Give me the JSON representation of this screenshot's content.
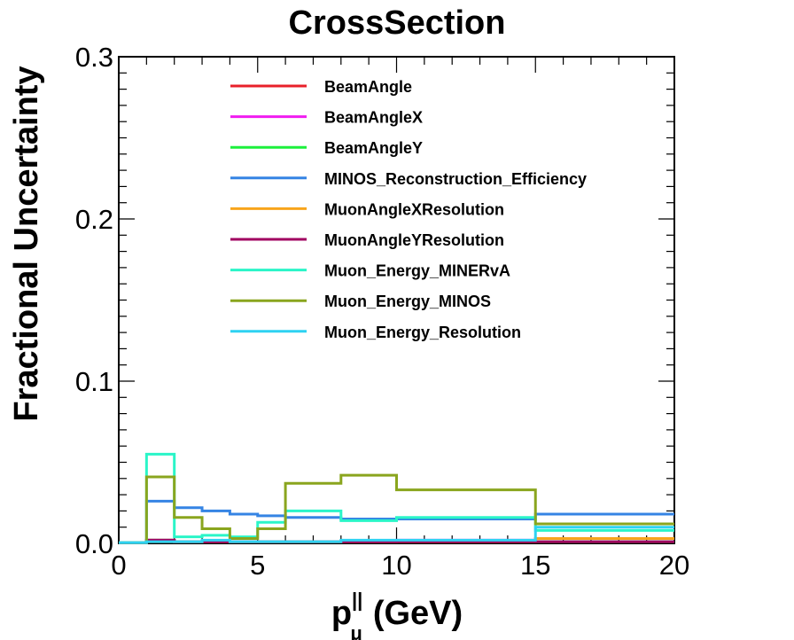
{
  "chart_data": {
    "type": "line",
    "title": "CrossSection",
    "xlabel_main": "p",
    "xlabel_sup": "||",
    "xlabel_sub": "μ",
    "xlabel_units": "(GeV)",
    "ylabel": "Fractional Uncertainty",
    "xlim": [
      0,
      20
    ],
    "ylim": [
      0,
      0.3
    ],
    "xticks": [
      {
        "v": 0,
        "label": "0"
      },
      {
        "v": 5,
        "label": "5"
      },
      {
        "v": 10,
        "label": "10"
      },
      {
        "v": 15,
        "label": "15"
      },
      {
        "v": 20,
        "label": "20"
      }
    ],
    "yticks": [
      {
        "v": 0,
        "label": "0.0"
      },
      {
        "v": 0.1,
        "label": "0.1"
      },
      {
        "v": 0.2,
        "label": "0.2"
      },
      {
        "v": 0.3,
        "label": "0.3"
      }
    ],
    "grid": false,
    "legend_position": "top-center",
    "bin_edges": [
      0,
      1,
      2,
      3,
      4,
      5,
      6,
      8,
      10,
      15,
      20
    ],
    "series": [
      {
        "name": "BeamAngle",
        "color": "#e8202a",
        "values": [
          0.0005,
          0.002,
          0.001,
          0.001,
          0.001,
          0.001,
          0.001,
          0.001,
          0.001,
          0.001
        ]
      },
      {
        "name": "BeamAngleX",
        "color": "#f01cf0",
        "values": [
          0.0005,
          0.002,
          0.001,
          0.001,
          0.001,
          0.001,
          0.001,
          0.001,
          0.002,
          0.003
        ]
      },
      {
        "name": "BeamAngleY",
        "color": "#1cf03c",
        "values": [
          0.0005,
          0.002,
          0.001,
          0.001,
          0.001,
          0.001,
          0.001,
          0.001,
          0.001,
          0.001
        ]
      },
      {
        "name": "MINOS_Reconstruction_Efficiency",
        "color": "#3584e4",
        "values": [
          0.0005,
          0.026,
          0.022,
          0.02,
          0.018,
          0.017,
          0.016,
          0.015,
          0.015,
          0.018
        ]
      },
      {
        "name": "MuonAngleXResolution",
        "color": "#f8a51c",
        "values": [
          0.0005,
          0.001,
          0.001,
          0.001,
          0.001,
          0.001,
          0.001,
          0.001,
          0.001,
          0.003
        ]
      },
      {
        "name": "MuonAngleYResolution",
        "color": "#a00060",
        "values": [
          0.0005,
          0.002,
          0.001,
          0.001,
          0.001,
          0.001,
          0.001,
          0.001,
          0.001,
          0.001
        ]
      },
      {
        "name": "Muon_Energy_MINERvA",
        "color": "#2af5c8",
        "values": [
          0.0005,
          0.055,
          0.004,
          0.005,
          0.004,
          0.013,
          0.02,
          0.014,
          0.016,
          0.008
        ]
      },
      {
        "name": "Muon_Energy_MINOS",
        "color": "#8aa51e",
        "values": [
          0.0005,
          0.041,
          0.016,
          0.009,
          0.003,
          0.009,
          0.037,
          0.042,
          0.033,
          0.012
        ]
      },
      {
        "name": "Muon_Energy_Resolution",
        "color": "#2ed2f2",
        "values": [
          0.0005,
          0.001,
          0.001,
          0.002,
          0.001,
          0.001,
          0.001,
          0.002,
          0.002,
          0.01
        ]
      }
    ]
  }
}
